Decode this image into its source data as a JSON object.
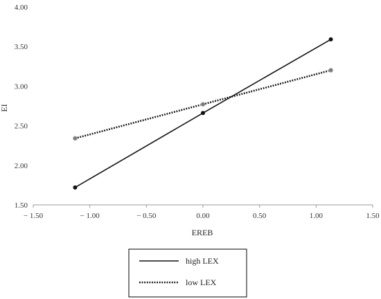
{
  "chart_data": {
    "type": "line",
    "title": "",
    "xlabel": "EREB",
    "ylabel": "EI",
    "xlim": [
      -1.5,
      1.5
    ],
    "ylim": [
      1.5,
      4.0
    ],
    "x_ticks": [
      "− 1.50",
      "− 1.00",
      "− 0.50",
      "0.00",
      "0.50",
      "1.00",
      "1.50"
    ],
    "y_ticks": [
      "1.50",
      "2.00",
      "2.50",
      "3.00",
      "3.50",
      "4.00"
    ],
    "grid": false,
    "legend": {
      "placement": "bottom-center"
    },
    "x": [
      -1.13,
      0.0,
      1.13
    ],
    "series": [
      {
        "name": "high LEX",
        "style": "solid",
        "color": "#111111",
        "values": [
          1.72,
          2.66,
          3.59
        ]
      },
      {
        "name": "low LEX",
        "style": "dotted",
        "color": "#111111",
        "values": [
          2.34,
          2.77,
          3.2
        ]
      }
    ]
  }
}
